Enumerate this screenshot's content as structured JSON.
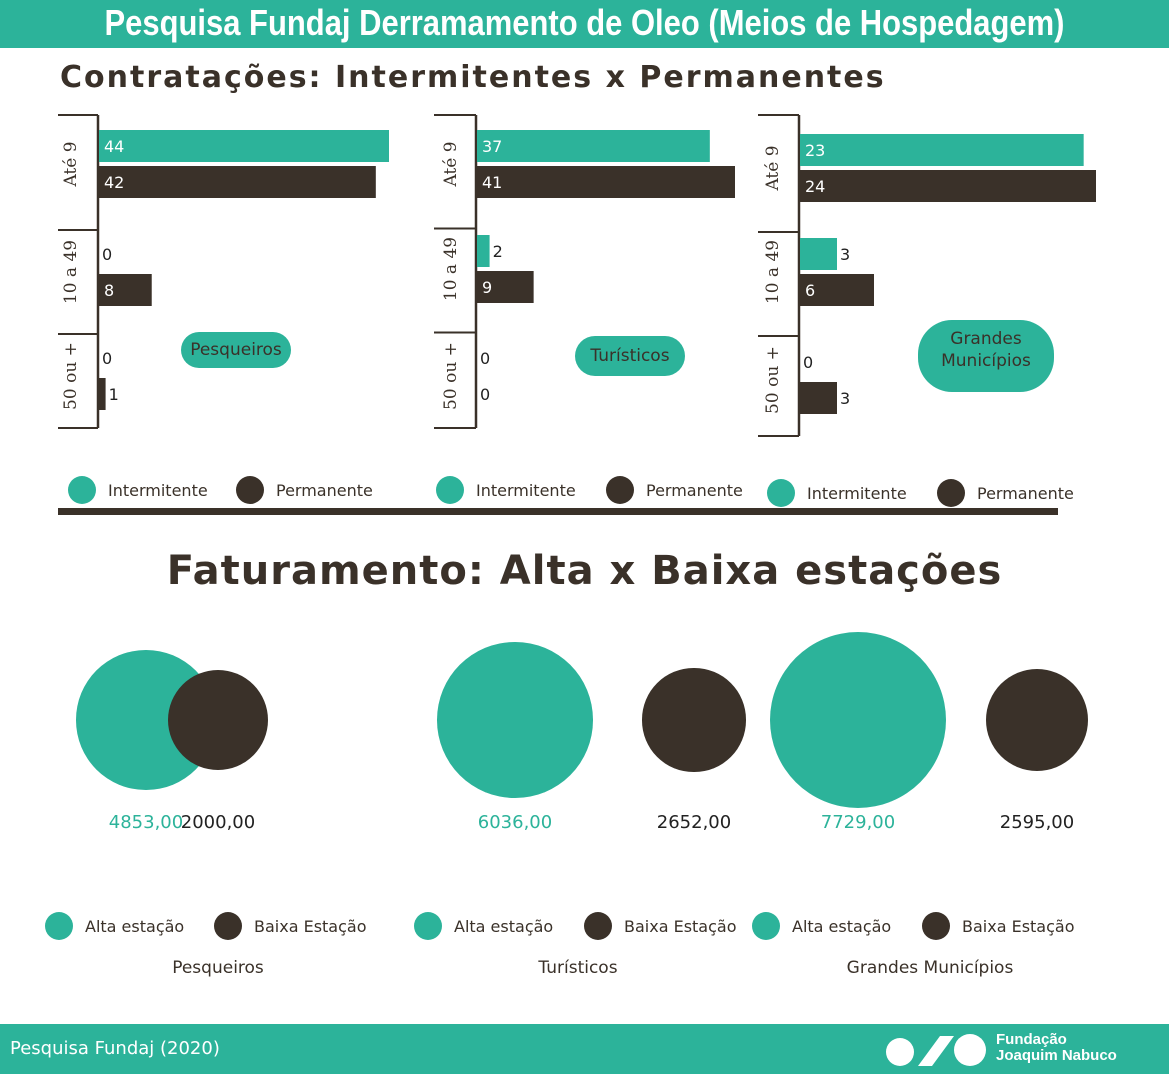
{
  "header": {
    "title": "Pesquisa Fundaj Derramamento de Oleo (Meios de Hospedagem)"
  },
  "section1": {
    "title": "Contratações: Intermitentes x Permanentes"
  },
  "section2": {
    "title": "Faturamento: Alta x Baixa estações"
  },
  "chart_data": [
    {
      "type": "bar",
      "orientation": "horizontal",
      "name_badge": "Pesqueiros",
      "categories": [
        "Até 9",
        "10 a 49",
        "50 ou +"
      ],
      "series": [
        {
          "name": "Intermitente",
          "values": [
            44,
            0,
            0
          ]
        },
        {
          "name": "Permanente",
          "values": [
            42,
            8,
            1
          ]
        }
      ],
      "legend": [
        "Intermitente",
        "Permanente"
      ]
    },
    {
      "type": "bar",
      "orientation": "horizontal",
      "name_badge": "Turísticos",
      "categories": [
        "Até 9",
        "10 a 49",
        "50 ou +"
      ],
      "series": [
        {
          "name": "Intermitente",
          "values": [
            37,
            2,
            0
          ]
        },
        {
          "name": "Permanente",
          "values": [
            41,
            9,
            0
          ]
        }
      ],
      "legend": [
        "Intermitente",
        "Permanente"
      ]
    },
    {
      "type": "bar",
      "orientation": "horizontal",
      "name_badge": "Grandes Municípios",
      "categories": [
        "Até 9",
        "10 a 49",
        "50 ou +"
      ],
      "series": [
        {
          "name": "Intermitente",
          "values": [
            23,
            3,
            0
          ]
        },
        {
          "name": "Permanente",
          "values": [
            24,
            6,
            3
          ]
        }
      ],
      "legend": [
        "Intermitente",
        "Permanente"
      ]
    },
    {
      "type": "bubble",
      "groups": [
        {
          "name": "Pesqueiros",
          "values": [
            4853.0,
            2000.0
          ],
          "labels": [
            "4853,00",
            "2000,00"
          ]
        },
        {
          "name": "Turísticos",
          "values": [
            6036.0,
            2652.0
          ],
          "labels": [
            "6036,00",
            "2652,00"
          ]
        },
        {
          "name": "Grandes Municípios",
          "values": [
            7729.0,
            2595.0
          ],
          "labels": [
            "7729,00",
            "2595,00"
          ]
        }
      ],
      "series_names": [
        "Alta estação",
        "Baixa Estação"
      ]
    }
  ],
  "colors": {
    "teal": "#2cb39a",
    "dark": "#3a3129"
  },
  "footer": {
    "source": "Pesquisa Fundaj (2020)",
    "logo_line1": "Fundação",
    "logo_line2": "Joaquim Nabuco"
  }
}
